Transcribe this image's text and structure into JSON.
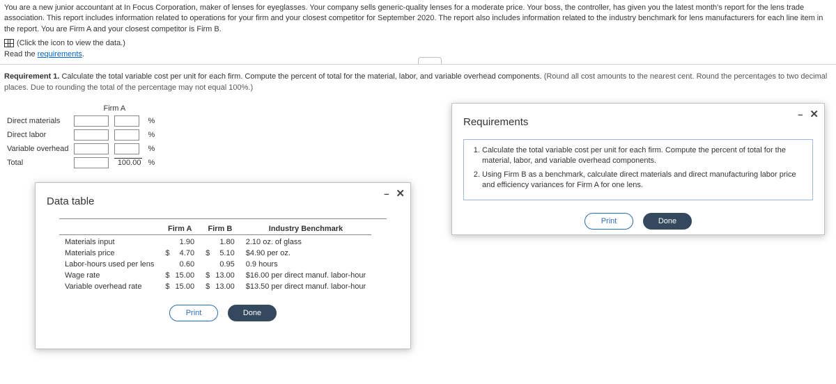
{
  "intro": {
    "p1": "You are a new junior accountant at In Focus Corporation, maker of lenses for eyeglasses. Your company sells generic-quality lenses for a moderate price. Your boss, the controller, has given you the latest month's report for the lens trade association. This report includes information related to operations for your firm and your closest competitor for September 2020. The report also includes information related to the industry benchmark for lens manufacturers for each line item in the report. You are Firm A and your closest competitor is Firm B.",
    "view_data": "(Click the icon to view the data.)",
    "read_req_prefix": "Read the ",
    "read_req_link": "requirements",
    "read_req_suffix": "."
  },
  "requirement1": {
    "label": "Requirement 1.",
    "text": " Calculate the total variable cost per unit for each firm. Compute the percent of total for the material, labor, and variable overhead components. ",
    "note": "(Round all cost amounts to the nearest cent. Round the percentages to two decimal places. Due to rounding the total of the percentage may not equal 100%.)"
  },
  "calc": {
    "header_firmA": "Firm A",
    "rows": {
      "dm": "Direct materials",
      "dl": "Direct labor",
      "voh": "Variable overhead",
      "total": "Total"
    },
    "total_pct": "100.00",
    "pct_sym": "%"
  },
  "data_modal": {
    "title": "Data table",
    "headers": {
      "c0": "",
      "c1": "Firm A",
      "c2": "Firm B",
      "c3": "Industry Benchmark"
    },
    "rows": [
      {
        "label": "Materials input",
        "curA": "",
        "a": "1.90",
        "curB": "",
        "b": "1.80",
        "bench": "2.10 oz. of glass"
      },
      {
        "label": "Materials price",
        "curA": "$",
        "a": "4.70",
        "curB": "$",
        "b": "5.10",
        "bench": "$4.90 per oz."
      },
      {
        "label": "Labor-hours used per lens",
        "curA": "",
        "a": "0.60",
        "curB": "",
        "b": "0.95",
        "bench": "0.9 hours"
      },
      {
        "label": "Wage rate",
        "curA": "$",
        "a": "15.00",
        "curB": "$",
        "b": "13.00",
        "bench": "$16.00 per direct manuf. labor-hour"
      },
      {
        "label": "Variable overhead rate",
        "curA": "$",
        "a": "15.00",
        "curB": "$",
        "b": "13.00",
        "bench": "$13.50 per direct manuf. labor-hour"
      }
    ],
    "print": "Print",
    "done": "Done"
  },
  "req_modal": {
    "title": "Requirements",
    "items": [
      "Calculate the total variable cost per unit for each firm. Compute the percent of total for the material, labor, and variable overhead components.",
      "Using Firm B as a benchmark, calculate direct materials and direct manufacturing labor price and efficiency variances for Firm A for one lens."
    ],
    "print": "Print",
    "done": "Done"
  },
  "colors": {
    "link": "#0066cc",
    "modal_border": "#c0c0c0",
    "req_box_border": "#9bb7e0",
    "btn_outline": "#2b6cb0",
    "btn_solid_bg": "#34495e"
  }
}
